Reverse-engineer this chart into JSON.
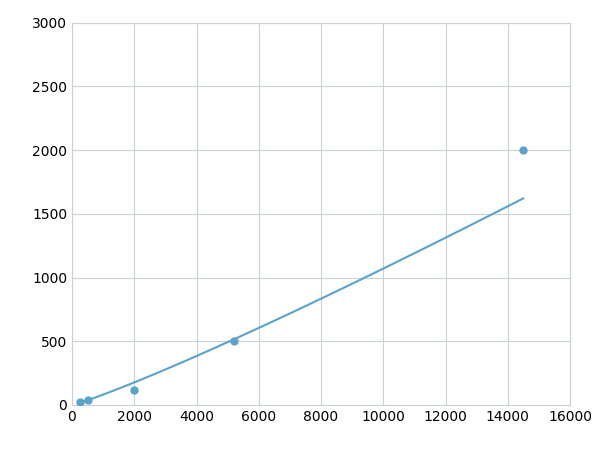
{
  "x_points": [
    250,
    500,
    2000,
    5200,
    14500
  ],
  "y_points": [
    20,
    40,
    120,
    500,
    2000
  ],
  "line_color": "#5ba3c9",
  "marker_color": "#5ba3c9",
  "marker_size": 5,
  "marker_style": "o",
  "line_width": 1.5,
  "xlim": [
    0,
    16000
  ],
  "ylim": [
    0,
    3000
  ],
  "xticks": [
    0,
    2000,
    4000,
    6000,
    8000,
    10000,
    12000,
    14000,
    16000
  ],
  "yticks": [
    0,
    500,
    1000,
    1500,
    2000,
    2500,
    3000
  ],
  "grid_color": "#c8d0d8",
  "grid_linestyle": "-",
  "grid_linewidth": 0.8,
  "bg_color": "#ffffff",
  "spine_color": "#c8d0d8",
  "tick_label_fontsize": 10,
  "figsize": [
    6.0,
    4.5
  ],
  "dpi": 100
}
